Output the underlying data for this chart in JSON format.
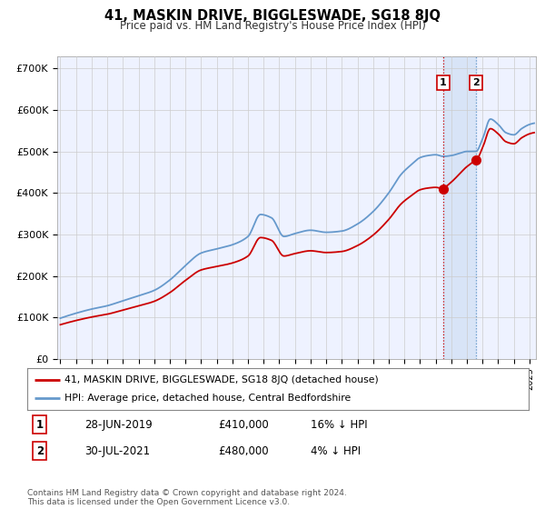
{
  "title": "41, MASKIN DRIVE, BIGGLESWADE, SG18 8JQ",
  "subtitle": "Price paid vs. HM Land Registry's House Price Index (HPI)",
  "ylabel_ticks": [
    "£0",
    "£100K",
    "£200K",
    "£300K",
    "£400K",
    "£500K",
    "£600K",
    "£700K"
  ],
  "ytick_vals": [
    0,
    100000,
    200000,
    300000,
    400000,
    500000,
    600000,
    700000
  ],
  "ylim": [
    0,
    730000
  ],
  "xlim_start": 1994.8,
  "xlim_end": 2025.4,
  "red_line_color": "#cc0000",
  "blue_line_color": "#6699cc",
  "marker1_date": 2019.49,
  "marker1_price": 410000,
  "marker2_date": 2021.58,
  "marker2_price": 480000,
  "legend_label1": "41, MASKIN DRIVE, BIGGLESWADE, SG18 8JQ (detached house)",
  "legend_label2": "HPI: Average price, detached house, Central Bedfordshire",
  "table_row1": [
    "1",
    "28-JUN-2019",
    "£410,000",
    "16% ↓ HPI"
  ],
  "table_row2": [
    "2",
    "30-JUL-2021",
    "£480,000",
    "4% ↓ HPI"
  ],
  "footer": "Contains HM Land Registry data © Crown copyright and database right 2024.\nThis data is licensed under the Open Government Licence v3.0.",
  "plot_background": "#eef2ff",
  "grid_color": "#cccccc",
  "shade_color": "#d0dff5"
}
